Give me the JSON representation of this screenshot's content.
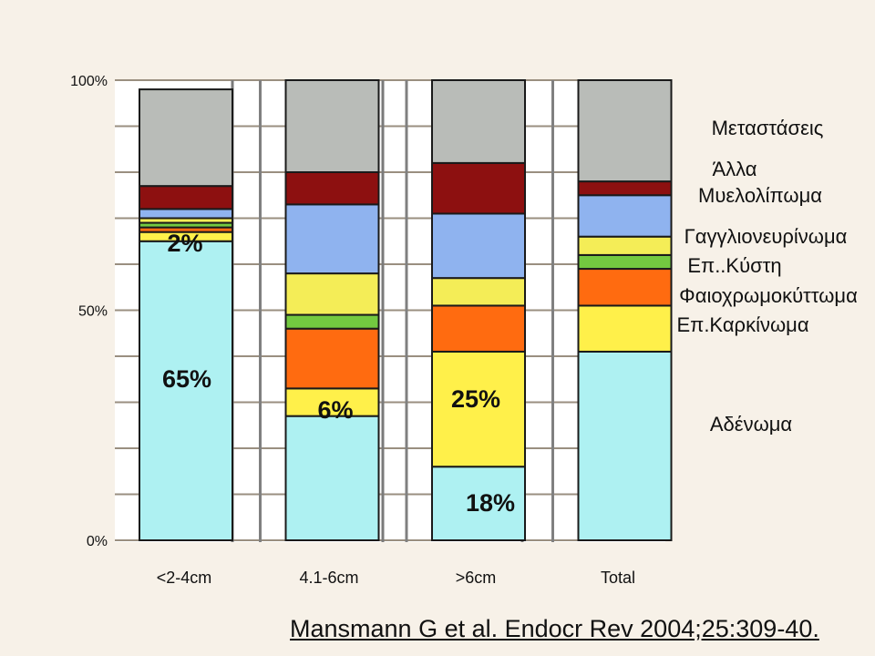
{
  "colors": {
    "background": "#f7f1e8",
    "Αδένωμα": "#aef1f2",
    "Επ.Καρκίνωμα": "#fff04a",
    "Φαιοχρωμοκύττωμα": "#ff6b10",
    "Επ..Κύστη": "#73c940",
    "Γαγγλιονευρίνωμα": "#f4ed57",
    "Μυελολίπωμα": "#8fb3ef",
    "Άλλα": "#8d1010",
    "Μεταστάσεις": "#b9bcb8"
  },
  "chart_data": {
    "type": "bar",
    "stacked": true,
    "categories": [
      "<2-4cm",
      "4.1-6cm",
      ">6cm",
      "Total"
    ],
    "series": [
      {
        "name": "Αδένωμα",
        "values": [
          65,
          27,
          16,
          41
        ]
      },
      {
        "name": "Επ.Καρκίνωμα",
        "values": [
          2,
          6,
          25,
          10
        ]
      },
      {
        "name": "Φαιοχρωμοκύττωμα",
        "values": [
          1,
          13,
          10,
          8
        ]
      },
      {
        "name": "Επ..Κύστη",
        "values": [
          1,
          3,
          0,
          3
        ]
      },
      {
        "name": "Γαγγλιονευρίνωμα",
        "values": [
          1,
          9,
          6,
          4
        ]
      },
      {
        "name": "Μυελολίπωμα",
        "values": [
          2,
          15,
          14,
          9
        ]
      },
      {
        "name": "Άλλα",
        "values": [
          5,
          7,
          11,
          3
        ]
      },
      {
        "name": "Μεταστάσεις",
        "values": [
          21,
          20,
          18,
          22
        ]
      }
    ],
    "legend_order": [
      "Μεταστάσεις",
      "Άλλα",
      "Μυελολίπωμα",
      "Γαγγλιονευρίνωμα",
      "Επ..Κύστη",
      "Φαιοχρωμοκύττωμα",
      "Επ.Καρκίνωμα",
      "Αδένωμα"
    ],
    "y_ticks": [
      "0%",
      "50%",
      "100%"
    ],
    "ylim": [
      0,
      100
    ],
    "grid": true,
    "legend_position": "right",
    "data_labels": [
      {
        "text": "65%",
        "category": "<2-4cm"
      },
      {
        "text": "2%",
        "category": "<2-4cm"
      },
      {
        "text": "6%",
        "category": "4.1-6cm"
      },
      {
        "text": "25%",
        "category": ">6cm"
      },
      {
        "text": "18%",
        "category": ">6cm"
      }
    ]
  },
  "citation": "Mansmann G et al. Endocr Rev 2004;25:309-40."
}
